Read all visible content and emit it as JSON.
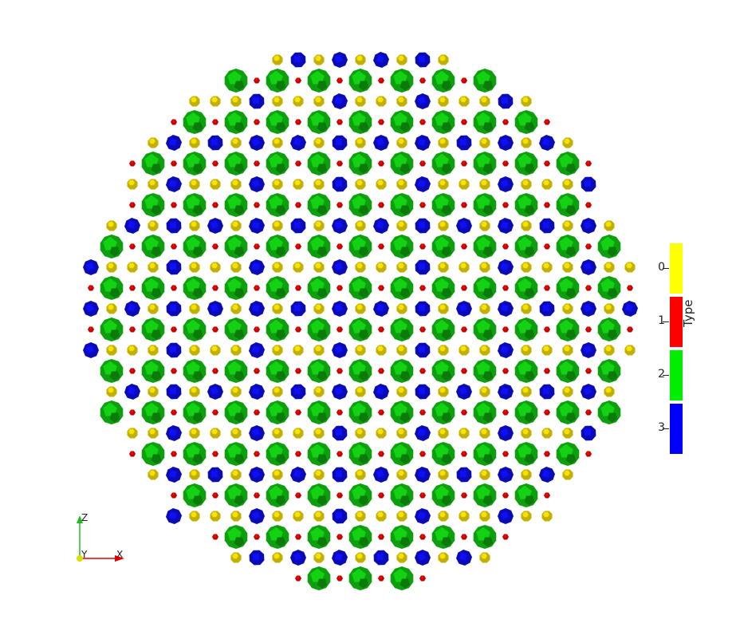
{
  "legend": {
    "title": "Type",
    "entries": [
      {
        "label": "0",
        "color": "#ffff00"
      },
      {
        "label": "1",
        "color": "#ff0000"
      },
      {
        "label": "2",
        "color": "#00ee00"
      },
      {
        "label": "3",
        "color": "#0000ff"
      }
    ]
  },
  "axes": {
    "z_label": "Z",
    "y_label": "Y",
    "x_label": "X",
    "z_color": "#22bb22",
    "y_color": "#dddd00",
    "x_color": "#dd0000"
  },
  "particle_colors": {
    "type0": "#d6c400",
    "type1": "#c40000",
    "type2": "#11bb11",
    "type3": "#0a0ab8"
  }
}
